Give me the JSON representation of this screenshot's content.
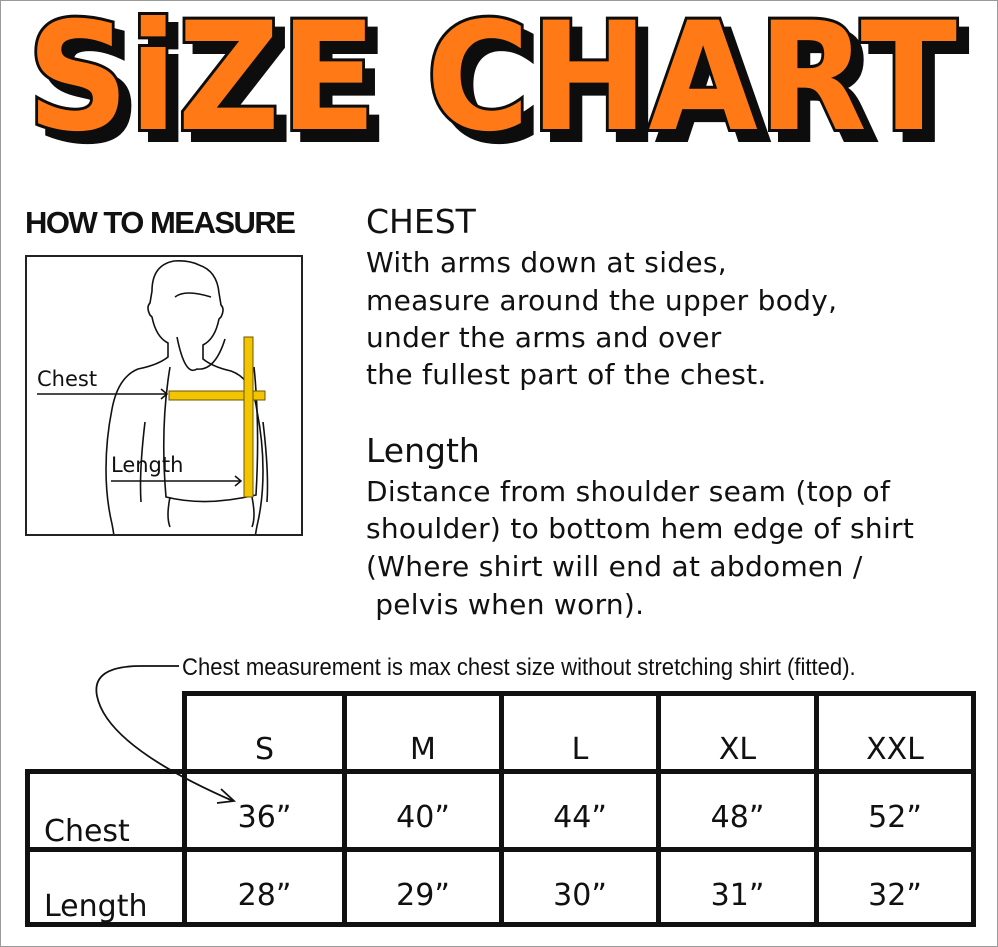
{
  "title": "SiZE CHART",
  "colors": {
    "title_fill": "#ff7a12",
    "title_outline": "#111111",
    "tape": "#f2c500"
  },
  "how_to_measure": {
    "heading": "HOW TO MEASURE",
    "figure_labels": {
      "chest": "Chest",
      "length": "Length"
    }
  },
  "chest_section": {
    "heading": "CHEST",
    "lines": [
      "With arms down at sides,",
      "measure around the upper body,",
      "under the arms and over",
      "the fullest part of the chest."
    ]
  },
  "length_section": {
    "heading": "Length",
    "lines": [
      "Distance from shoulder seam (top of",
      "shoulder) to bottom hem edge of shirt",
      "(Where shirt will end at abdomen /",
      " pelvis when worn)."
    ]
  },
  "note": "Chest measurement is max chest size without stretching shirt (fitted).",
  "table": {
    "sizes": [
      "S",
      "M",
      "L",
      "XL",
      "XXL"
    ],
    "rows": [
      {
        "label": "Chest",
        "values": [
          "36”",
          "40”",
          "44”",
          "48”",
          "52”"
        ]
      },
      {
        "label": "Length",
        "values": [
          "28”",
          "29”",
          "30”",
          "31”",
          "32”"
        ]
      }
    ]
  }
}
